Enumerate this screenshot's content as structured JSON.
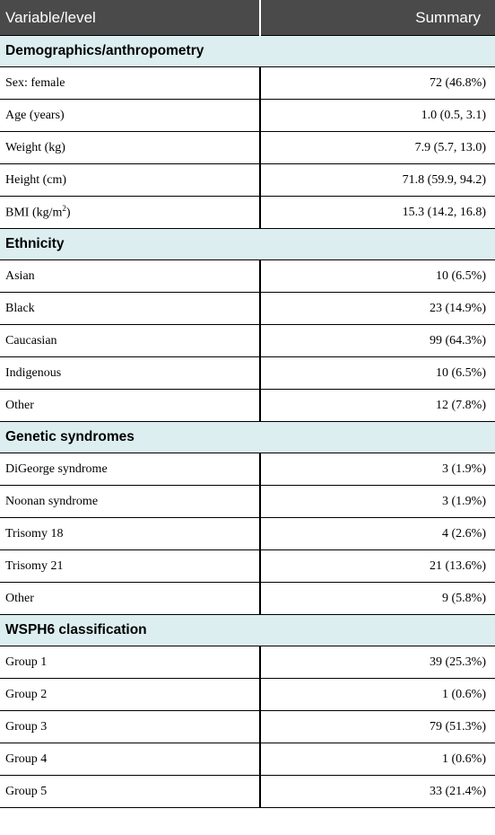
{
  "header": {
    "col1": "Variable/level",
    "col2": "Summary"
  },
  "sections": [
    {
      "title": "Demographics/anthropometry",
      "rows": [
        {
          "label": "Sex: female",
          "value": "72 (46.8%)"
        },
        {
          "label": "Age (years)",
          "value": "1.0 (0.5, 3.1)"
        },
        {
          "label": "Weight (kg)",
          "value": "7.9 (5.7, 13.0)"
        },
        {
          "label": "Height (cm)",
          "value": "71.8 (59.9, 94.2)"
        },
        {
          "label_prefix": "BMI (kg/m",
          "label_sup": "2",
          "label_suffix": ")",
          "value": "15.3 (14.2, 16.8)"
        }
      ]
    },
    {
      "title": "Ethnicity",
      "rows": [
        {
          "label": "Asian",
          "value": "10 (6.5%)"
        },
        {
          "label": "Black",
          "value": "23 (14.9%)"
        },
        {
          "label": "Caucasian",
          "value": "99 (64.3%)"
        },
        {
          "label": "Indigenous",
          "value": "10 (6.5%)"
        },
        {
          "label": "Other",
          "value": "12 (7.8%)"
        }
      ]
    },
    {
      "title": "Genetic syndromes",
      "rows": [
        {
          "label": "DiGeorge syndrome",
          "value": "3 (1.9%)"
        },
        {
          "label": "Noonan syndrome",
          "value": "3 (1.9%)"
        },
        {
          "label": "Trisomy 18",
          "value": "4 (2.6%)"
        },
        {
          "label": "Trisomy 21",
          "value": "21 (13.6%)"
        },
        {
          "label": "Other",
          "value": "9 (5.8%)"
        }
      ]
    },
    {
      "title": "WSPH6 classification",
      "rows": [
        {
          "label": "Group 1",
          "value": "39 (25.3%)"
        },
        {
          "label": "Group 2",
          "value": "1 (0.6%)"
        },
        {
          "label": "Group 3",
          "value": "79 (51.3%)"
        },
        {
          "label": "Group 4",
          "value": "1 (0.6%)"
        },
        {
          "label": "Group 5",
          "value": "33 (21.4%)"
        }
      ]
    }
  ]
}
